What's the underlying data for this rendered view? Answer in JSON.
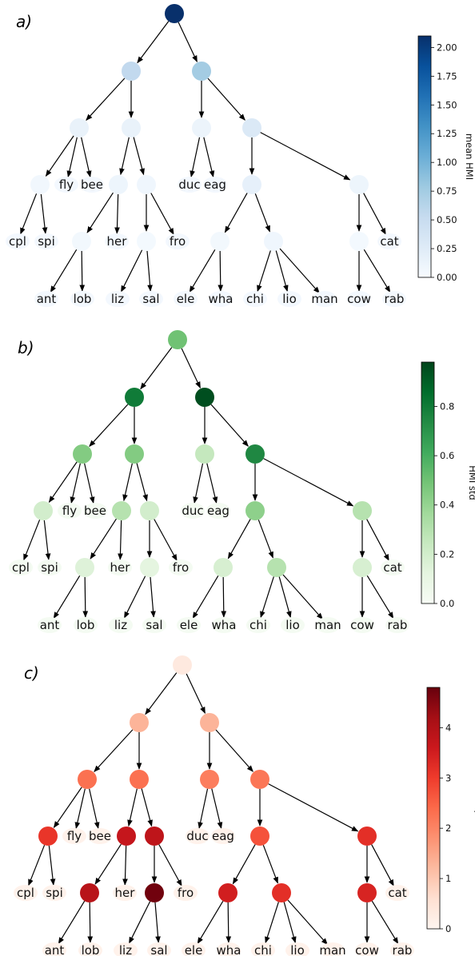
{
  "panels": [
    {
      "id": "a",
      "label": "a)",
      "colorbar": {
        "label": "mean HMI",
        "scale": "Blues",
        "min": 0.0,
        "max": 2.1,
        "ticks": [
          "0.00",
          "0.25",
          "0.50",
          "0.75",
          "1.00",
          "1.25",
          "1.50",
          "1.75",
          "2.00"
        ]
      },
      "nodes": {
        "root": 2.1,
        "L": 0.55,
        "R": 0.75,
        "LL": 0.15,
        "LR": 0.15,
        "RL": 0.12,
        "RR": 0.3,
        "LL1": 0.06,
        "LR1": 0.1,
        "LR2": 0.08,
        "RR1": 0.18,
        "RR2": 0.1,
        "LR1a": 0.05,
        "LR2a": 0.04,
        "RR1a": 0.05,
        "RR1b": 0.08,
        "RR2a": 0.04
      },
      "leaves": [
        "cpl",
        "spi",
        "fly",
        "bee",
        "her",
        "fro",
        "duc",
        "eag",
        "cat",
        "ant",
        "lob",
        "liz",
        "sal",
        "ele",
        "wha",
        "chi",
        "lio",
        "man",
        "cow",
        "rab"
      ]
    },
    {
      "id": "b",
      "label": "b)",
      "colorbar": {
        "label": "HMI std",
        "scale": "Greens",
        "min": 0.0,
        "max": 0.98,
        "ticks": [
          "0.0",
          "0.2",
          "0.4",
          "0.6",
          "0.8"
        ]
      },
      "nodes": {
        "root": 0.5,
        "L": 0.8,
        "R": 0.95,
        "LL": 0.45,
        "LR": 0.45,
        "RL": 0.25,
        "RR": 0.75,
        "LL1": 0.2,
        "LR1": 0.3,
        "LR2": 0.2,
        "RR1": 0.42,
        "RR2": 0.3,
        "LR1a": 0.15,
        "LR2a": 0.12,
        "RR1a": 0.18,
        "RR1b": 0.3,
        "RR2a": 0.18
      },
      "leaves": [
        "cpl",
        "spi",
        "fly",
        "bee",
        "her",
        "fro",
        "duc",
        "eag",
        "cat",
        "ant",
        "lob",
        "liz",
        "sal",
        "ele",
        "wha",
        "chi",
        "lio",
        "man",
        "cow",
        "rab"
      ]
    },
    {
      "id": "c",
      "label": "c)",
      "colorbar": {
        "label": "HMI std/mean",
        "scale": "Reds",
        "min": 0.0,
        "max": 4.8,
        "ticks": [
          "0",
          "1",
          "2",
          "3",
          "4"
        ]
      },
      "nodes": {
        "root": 0.35,
        "L": 1.3,
        "R": 1.3,
        "LL": 2.3,
        "LR": 2.3,
        "RL": 2.1,
        "RR": 2.2,
        "LL1": 3.1,
        "LR1": 3.7,
        "LR2": 3.8,
        "RR1": 2.7,
        "RR2": 3.2,
        "LR1a": 3.9,
        "LR2a": 4.7,
        "RR1a": 3.5,
        "RR1b": 3.2,
        "RR2a": 3.4
      },
      "leaves": [
        "cpl",
        "spi",
        "fly",
        "bee",
        "her",
        "fro",
        "duc",
        "eag",
        "cat",
        "ant",
        "lob",
        "liz",
        "sal",
        "ele",
        "wha",
        "chi",
        "lio",
        "man",
        "cow",
        "rab"
      ]
    }
  ]
}
